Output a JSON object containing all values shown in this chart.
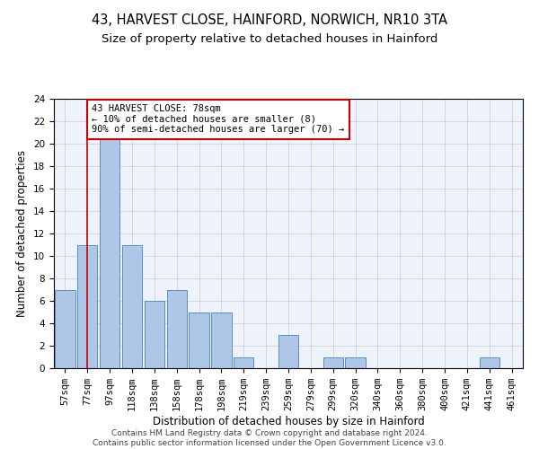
{
  "title_line1": "43, HARVEST CLOSE, HAINFORD, NORWICH, NR10 3TA",
  "title_line2": "Size of property relative to detached houses in Hainford",
  "xlabel": "Distribution of detached houses by size in Hainford",
  "ylabel": "Number of detached properties",
  "bar_color": "#aec6e8",
  "bar_edge_color": "#5a8fc2",
  "categories": [
    "57sqm",
    "77sqm",
    "97sqm",
    "118sqm",
    "138sqm",
    "158sqm",
    "178sqm",
    "198sqm",
    "219sqm",
    "239sqm",
    "259sqm",
    "279sqm",
    "299sqm",
    "320sqm",
    "340sqm",
    "360sqm",
    "380sqm",
    "400sqm",
    "421sqm",
    "441sqm",
    "461sqm"
  ],
  "values": [
    7,
    11,
    21,
    11,
    6,
    7,
    5,
    5,
    1,
    0,
    3,
    0,
    1,
    1,
    0,
    0,
    0,
    0,
    0,
    1,
    0
  ],
  "ylim": [
    0,
    24
  ],
  "yticks": [
    0,
    2,
    4,
    6,
    8,
    10,
    12,
    14,
    16,
    18,
    20,
    22,
    24
  ],
  "vline_x": 1.0,
  "vline_color": "#cc0000",
  "annotation_text": "43 HARVEST CLOSE: 78sqm\n← 10% of detached houses are smaller (8)\n90% of semi-detached houses are larger (70) →",
  "annotation_box_color": "#cc0000",
  "footer_line1": "Contains HM Land Registry data © Crown copyright and database right 2024.",
  "footer_line2": "Contains public sector information licensed under the Open Government Licence v3.0.",
  "bg_color": "#eef2fb",
  "grid_color": "#cccccc",
  "title_fontsize": 10.5,
  "subtitle_fontsize": 9.5,
  "axis_label_fontsize": 8.5,
  "tick_fontsize": 7.5,
  "footer_fontsize": 6.5
}
